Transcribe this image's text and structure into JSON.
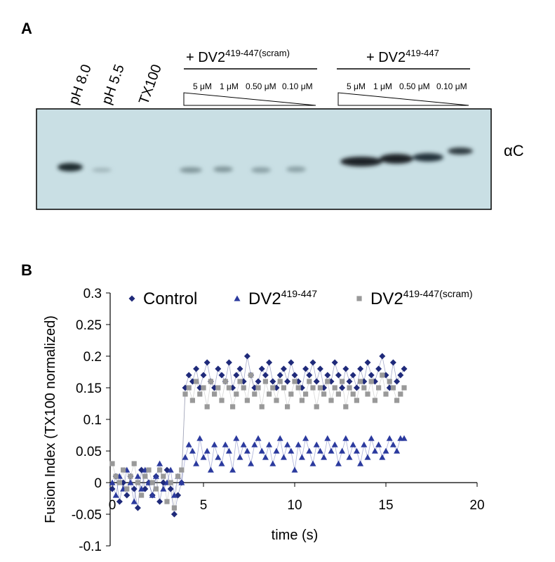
{
  "figure_a": {
    "panel_label": "A",
    "lanes": [
      "pH 8.0",
      "pH 5.5",
      "TX100"
    ],
    "groups": [
      {
        "title": "+ DV2",
        "superscript": "419-447(scram)",
        "concentrations": [
          "5 μM",
          "1 μM",
          "0.50 μM",
          "0.10 μM"
        ]
      },
      {
        "title": "+ DV2",
        "superscript": "419-447",
        "concentrations": [
          "5 μM",
          "1 μM",
          "0.50 μM",
          "0.10 μM"
        ]
      }
    ],
    "band_label": "αC"
  },
  "chart_data": {
    "type": "line",
    "panel_label": "B",
    "x_label": "time (s)",
    "y_label": "Fusion Index (TX100 normalized)",
    "xlim": [
      0,
      20
    ],
    "xticks": [
      0,
      5,
      10,
      15,
      20
    ],
    "ylim": [
      -0.1,
      0.3
    ],
    "yticks": [
      -0.1,
      -0.05,
      0,
      0.05,
      0.1,
      0.15,
      0.2,
      0.25,
      0.3
    ],
    "legend": "top",
    "x": [
      0,
      0.2,
      0.4,
      0.6,
      0.8,
      1,
      1.2,
      1.4,
      1.6,
      1.8,
      2,
      2.2,
      2.4,
      2.6,
      2.8,
      3,
      3.2,
      3.4,
      3.6,
      3.8,
      4,
      4.2,
      4.4,
      4.6,
      4.8,
      5,
      5.2,
      5.4,
      5.6,
      5.8,
      6,
      6.2,
      6.4,
      6.6,
      6.8,
      7,
      7.2,
      7.4,
      7.6,
      7.8,
      8,
      8.2,
      8.4,
      8.6,
      8.8,
      9,
      9.2,
      9.4,
      9.6,
      9.8,
      10,
      10.2,
      10.4,
      10.6,
      10.8,
      11,
      11.2,
      11.4,
      11.6,
      11.8,
      12,
      12.2,
      12.4,
      12.6,
      12.8,
      13,
      13.2,
      13.4,
      13.6,
      13.8,
      14,
      14.2,
      14.4,
      14.6,
      14.8,
      15,
      15.2,
      15.4,
      15.6,
      15.8,
      16
    ],
    "series": [
      {
        "name": "Control",
        "marker": "diamond",
        "color": "#1f2a7a",
        "values": [
          -0.01,
          0.01,
          -0.03,
          0.0,
          -0.02,
          0.01,
          -0.01,
          -0.04,
          0.02,
          -0.01,
          0.0,
          -0.02,
          0.01,
          -0.03,
          0.0,
          0.02,
          -0.01,
          -0.05,
          -0.02,
          0.0,
          0.15,
          0.17,
          0.16,
          0.18,
          0.15,
          0.17,
          0.19,
          0.16,
          0.15,
          0.18,
          0.17,
          0.16,
          0.19,
          0.15,
          0.17,
          0.18,
          0.16,
          0.2,
          0.17,
          0.15,
          0.16,
          0.18,
          0.17,
          0.19,
          0.16,
          0.15,
          0.17,
          0.18,
          0.16,
          0.19,
          0.17,
          0.16,
          0.15,
          0.18,
          0.17,
          0.19,
          0.16,
          0.18,
          0.15,
          0.17,
          0.16,
          0.19,
          0.17,
          0.15,
          0.18,
          0.16,
          0.17,
          0.15,
          0.18,
          0.16,
          0.19,
          0.17,
          0.16,
          0.18,
          0.2,
          0.17,
          0.15,
          0.19,
          0.16,
          0.17,
          0.18
        ]
      },
      {
        "name": "DV2",
        "superscript": "419-447",
        "marker": "triangle",
        "color": "#2b3a9e",
        "values": [
          0.0,
          -0.02,
          0.01,
          -0.01,
          0.02,
          0.0,
          -0.03,
          0.01,
          -0.01,
          0.02,
          0.0,
          -0.02,
          0.01,
          0.03,
          -0.01,
          0.0,
          0.02,
          -0.02,
          0.01,
          0.0,
          0.04,
          0.06,
          0.05,
          0.03,
          0.07,
          0.04,
          0.05,
          0.02,
          0.06,
          0.04,
          0.03,
          0.06,
          0.05,
          0.02,
          0.07,
          0.04,
          0.06,
          0.05,
          0.03,
          0.06,
          0.07,
          0.05,
          0.04,
          0.06,
          0.03,
          0.05,
          0.07,
          0.04,
          0.06,
          0.05,
          0.02,
          0.06,
          0.04,
          0.07,
          0.05,
          0.03,
          0.06,
          0.05,
          0.04,
          0.07,
          0.05,
          0.06,
          0.03,
          0.05,
          0.07,
          0.04,
          0.06,
          0.05,
          0.03,
          0.06,
          0.04,
          0.07,
          0.05,
          0.06,
          0.04,
          0.05,
          0.07,
          0.06,
          0.05,
          0.07,
          0.07
        ]
      },
      {
        "name": "DV2",
        "superscript": "419-447(scram)",
        "marker": "square",
        "color": "#999999",
        "values": [
          0.03,
          0.01,
          0.0,
          0.02,
          -0.01,
          0.01,
          0.03,
          0.0,
          -0.02,
          0.01,
          0.02,
          0.0,
          -0.01,
          0.02,
          0.01,
          -0.03,
          0.0,
          -0.04,
          0.01,
          0.02,
          0.14,
          0.15,
          0.13,
          0.16,
          0.14,
          0.15,
          0.12,
          0.16,
          0.14,
          0.15,
          0.13,
          0.16,
          0.15,
          0.12,
          0.14,
          0.16,
          0.15,
          0.13,
          0.17,
          0.14,
          0.15,
          0.12,
          0.16,
          0.14,
          0.15,
          0.13,
          0.16,
          0.15,
          0.12,
          0.14,
          0.16,
          0.15,
          0.13,
          0.14,
          0.16,
          0.15,
          0.12,
          0.15,
          0.14,
          0.16,
          0.13,
          0.15,
          0.14,
          0.16,
          0.12,
          0.15,
          0.14,
          0.13,
          0.16,
          0.15,
          0.14,
          0.16,
          0.13,
          0.15,
          0.17,
          0.14,
          0.16,
          0.15,
          0.13,
          0.14,
          0.15
        ]
      }
    ]
  }
}
